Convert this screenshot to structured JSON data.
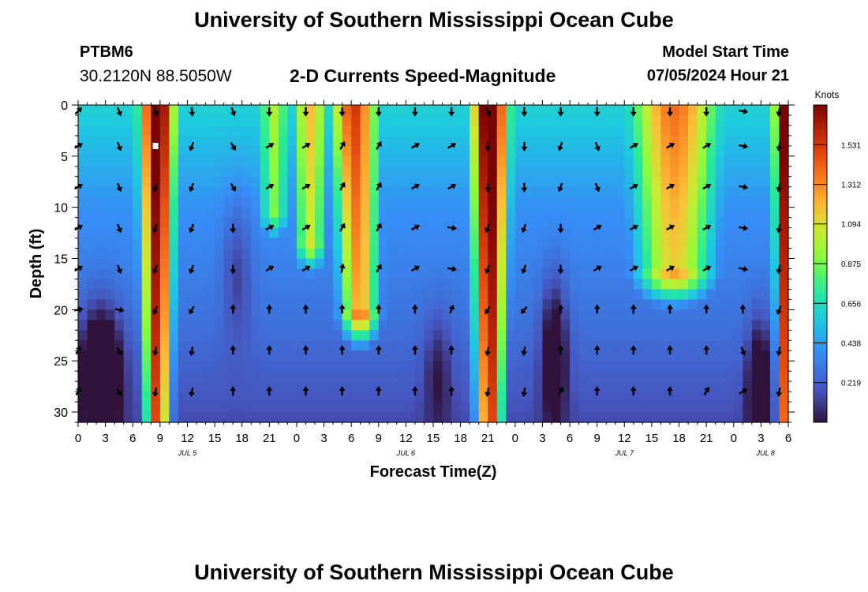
{
  "page_title_top": "University of Southern Mississippi Ocean Cube",
  "page_title_bottom": "University of Southern Mississippi Ocean Cube",
  "station": {
    "name": "PTBM6",
    "coordinates": "30.2120N  88.5050W"
  },
  "model": {
    "start_label": "Model Start Time",
    "start_value": "07/05/2024 Hour 21"
  },
  "chart_data": {
    "type": "heatmap",
    "title": "2-D Currents Speed-Magnitude",
    "xlabel": "Forecast Time(Z)",
    "ylabel": "Depth (ft)",
    "x_unit": "hours since Jul 5 00Z",
    "xlim": [
      0,
      78
    ],
    "ylim": [
      31,
      0
    ],
    "grid": false,
    "x_ticks": [
      {
        "x": 0,
        "label": "0"
      },
      {
        "x": 3,
        "label": "3"
      },
      {
        "x": 6,
        "label": "6"
      },
      {
        "x": 9,
        "label": "9"
      },
      {
        "x": 12,
        "label": "12"
      },
      {
        "x": 15,
        "label": "15"
      },
      {
        "x": 18,
        "label": "18"
      },
      {
        "x": 21,
        "label": "21"
      },
      {
        "x": 24,
        "label": "0"
      },
      {
        "x": 27,
        "label": "3"
      },
      {
        "x": 30,
        "label": "6"
      },
      {
        "x": 33,
        "label": "9"
      },
      {
        "x": 36,
        "label": "12"
      },
      {
        "x": 39,
        "label": "15"
      },
      {
        "x": 42,
        "label": "18"
      },
      {
        "x": 45,
        "label": "21"
      },
      {
        "x": 48,
        "label": "0"
      },
      {
        "x": 51,
        "label": "3"
      },
      {
        "x": 54,
        "label": "6"
      },
      {
        "x": 57,
        "label": "9"
      },
      {
        "x": 60,
        "label": "12"
      },
      {
        "x": 63,
        "label": "15"
      },
      {
        "x": 66,
        "label": "18"
      },
      {
        "x": 69,
        "label": "21"
      },
      {
        "x": 72,
        "label": "0"
      },
      {
        "x": 75,
        "label": "3"
      },
      {
        "x": 78,
        "label": "6"
      }
    ],
    "date_labels": [
      {
        "x": 12,
        "label": "JUL 5"
      },
      {
        "x": 36,
        "label": "JUL 6"
      },
      {
        "x": 60,
        "label": "JUL 7"
      },
      {
        "x": 75.5,
        "label": "JUL 8"
      }
    ],
    "y_ticks": [
      0,
      5,
      10,
      15,
      20,
      25,
      30
    ],
    "colorbar": {
      "unit": "Knots",
      "min": 0,
      "max": 1.75,
      "ticks": [
        1.531,
        1.312,
        1.094,
        0.875,
        0.656,
        0.438,
        0.219
      ]
    },
    "speed_field": {
      "background": 0.2,
      "ridges": [
        {
          "t": 8.7,
          "width": 2.0,
          "peak": 1.65,
          "depth_extent": 31,
          "taper": 0.12,
          "tilt": 0
        },
        {
          "t": 30.3,
          "width": 2.6,
          "peak": 1.3,
          "depth_extent": 20,
          "taper": 0.2,
          "tilt": 0.03
        },
        {
          "t": 25.5,
          "width": 2.0,
          "peak": 0.95,
          "depth_extent": 13,
          "taper": 0.2,
          "tilt": 0
        },
        {
          "t": 21.5,
          "width": 1.8,
          "peak": 0.75,
          "depth_extent": 10,
          "taper": 0.2,
          "tilt": 0
        },
        {
          "t": 45.2,
          "width": 2.1,
          "peak": 1.7,
          "depth_extent": 31,
          "taper": 0.12,
          "tilt": 0
        },
        {
          "t": 65.5,
          "width": 5.0,
          "peak": 1.15,
          "depth_extent": 16,
          "taper": 0.25,
          "tilt": 0
        },
        {
          "t": 77.6,
          "width": 1.2,
          "peak": 1.6,
          "depth_extent": 31,
          "taper": 0.15,
          "tilt": 0
        }
      ],
      "lows": [
        {
          "t": 2.5,
          "z": 26,
          "width": 2.2,
          "depth_width": 6,
          "depth": 0.6
        },
        {
          "t": 17.5,
          "z": 16,
          "width": 1.6,
          "depth_width": 7,
          "depth": 0.2
        },
        {
          "t": 39.5,
          "z": 26,
          "width": 1.5,
          "depth_width": 6,
          "depth": 0.2
        },
        {
          "t": 52.3,
          "z": 24,
          "width": 1.4,
          "depth_width": 7,
          "depth": 0.4
        },
        {
          "t": 74.8,
          "z": 27,
          "width": 1.3,
          "depth_width": 6,
          "depth": 0.4
        }
      ],
      "base_by_depth": [
        {
          "z": 0,
          "v": 0.6
        },
        {
          "z": 10,
          "v": 0.4
        },
        {
          "z": 20,
          "v": 0.3
        },
        {
          "z": 31,
          "v": 0.15
        }
      ]
    },
    "vectors": {
      "depths": [
        0,
        4,
        8,
        12,
        16,
        20,
        24,
        28
      ],
      "times": [
        0,
        4.5,
        8.5,
        12.5,
        17,
        21,
        25,
        29,
        33,
        37,
        41,
        45,
        49,
        53,
        57,
        61,
        65,
        69,
        73,
        77
      ],
      "directions_deg": [
        [
          45,
          160,
          160,
          175,
          160,
          180,
          180,
          180,
          180,
          180,
          180,
          160,
          180,
          180,
          180,
          180,
          180,
          180,
          100,
          190
        ],
        [
          60,
          160,
          200,
          200,
          150,
          60,
          60,
          30,
          30,
          60,
          60,
          180,
          180,
          200,
          160,
          60,
          60,
          60,
          100,
          190
        ],
        [
          60,
          160,
          200,
          200,
          150,
          60,
          60,
          30,
          30,
          60,
          60,
          180,
          180,
          200,
          160,
          60,
          60,
          60,
          100,
          190
        ],
        [
          60,
          160,
          200,
          200,
          180,
          60,
          60,
          30,
          30,
          60,
          100,
          200,
          200,
          180,
          60,
          60,
          60,
          60,
          100,
          190
        ],
        [
          60,
          160,
          200,
          200,
          180,
          60,
          60,
          10,
          30,
          60,
          100,
          200,
          200,
          180,
          60,
          60,
          60,
          60,
          100,
          190
        ],
        [
          80,
          100,
          200,
          210,
          0,
          0,
          0,
          0,
          0,
          0,
          20,
          210,
          220,
          0,
          0,
          0,
          0,
          0,
          0,
          200
        ],
        [
          30,
          150,
          190,
          190,
          0,
          0,
          0,
          0,
          0,
          0,
          0,
          190,
          190,
          0,
          0,
          0,
          0,
          0,
          160,
          190
        ],
        [
          30,
          150,
          190,
          190,
          0,
          0,
          0,
          0,
          0,
          0,
          0,
          190,
          190,
          30,
          0,
          0,
          0,
          30,
          60,
          190
        ]
      ],
      "marker": {
        "t": 8.2,
        "z": 4
      }
    }
  }
}
